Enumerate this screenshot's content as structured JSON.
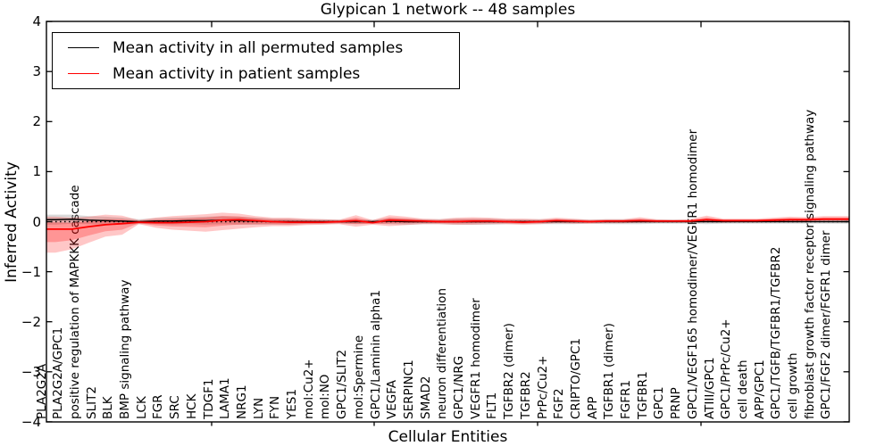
{
  "figure": {
    "title": "Glypican 1 network -- 48 samples",
    "xlabel": "Cellular Entities",
    "ylabel": "Inferred Activity"
  },
  "chart_data": {
    "type": "line",
    "title": "Glypican 1 network -- 48 samples",
    "xlabel": "Cellular Entities",
    "ylabel": "Inferred Activity",
    "ylim": [
      -4,
      4
    ],
    "yticks": [
      4,
      3,
      2,
      1,
      0,
      -1,
      -2,
      -3,
      -4
    ],
    "grid": false,
    "legend_position": "upper left",
    "zero_line": {
      "y": 0,
      "style": "dotted",
      "color": "#000000"
    },
    "categories": [
      "PLA2G2A",
      "PLA2G2A/GPC1",
      "positive regulation of MAPKKK cascade",
      "SLIT2",
      "BLK",
      "BMP signaling pathway",
      "LCK",
      "FGR",
      "SRC",
      "HCK",
      "TDGF1",
      "LAMA1",
      "NRG1",
      "LYN",
      "FYN",
      "YES1",
      "mol:Cu2+",
      "mol:NO",
      "GPC1/SLIT2",
      "mol:Spermine",
      "GPC1/Laminin alpha1",
      "VEGFA",
      "SERPINC1",
      "SMAD2",
      "neuron differentiation",
      "GPC1/NRG",
      "VEGFR1 homodimer",
      "FLT1",
      "TGFBR2 (dimer)",
      "TGFBR2",
      "PrPc/Cu2+",
      "FGF2",
      "CRIPTO/GPC1",
      "APP",
      "TGFBR1 (dimer)",
      "FGFR1",
      "TGFBR1",
      "GPC1",
      "PRNP",
      "GPC1/VEGF165 homodimer/VEGFR1 homodimer",
      "ATIII/GPC1",
      "GPC1/PrPc/Cu2+",
      "cell death",
      "APP/GPC1",
      "GPC1/TGFB/TGFBR1/TGFBR2",
      "cell growth",
      "fibroblast growth factor receptor signaling pathway",
      "GPC1/FGF2 dimer/FGFR1 dimer"
    ],
    "series": [
      {
        "name": "Mean activity in all permuted samples",
        "color": "#000000",
        "style": "solid",
        "values": [
          0.04,
          0.05,
          0.03,
          0.02,
          0.01,
          0.0,
          0.01,
          0.01,
          0.02,
          0.02,
          0.03,
          0.02,
          0.01,
          0.0,
          0.0,
          0.0,
          0.0,
          0.0,
          0.0,
          0.0,
          0.01,
          0.0,
          0.0,
          0.0,
          0.0,
          0.0,
          0.0,
          0.0,
          0.0,
          0.0,
          0.0,
          0.0,
          0.0,
          0.0,
          0.0,
          0.0,
          0.0,
          0.0,
          0.0,
          0.0,
          0.0,
          0.0,
          0.0,
          0.0,
          0.0,
          0.0,
          0.0,
          0.0
        ]
      },
      {
        "name": "Mean activity in patient samples",
        "color": "#ff0000",
        "style": "solid",
        "values": [
          -0.15,
          -0.15,
          -0.1,
          -0.06,
          -0.04,
          -0.01,
          -0.02,
          -0.02,
          -0.01,
          0.0,
          0.03,
          0.04,
          0.02,
          0.0,
          -0.01,
          -0.01,
          -0.01,
          0.0,
          0.02,
          -0.02,
          0.03,
          0.02,
          0.01,
          0.0,
          0.0,
          0.01,
          0.01,
          0.0,
          -0.01,
          0.0,
          0.02,
          0.01,
          0.0,
          0.01,
          0.01,
          0.02,
          0.01,
          0.01,
          0.01,
          0.04,
          0.02,
          0.02,
          0.02,
          0.03,
          0.04,
          0.04,
          0.05,
          0.05
        ]
      }
    ],
    "bands": [
      {
        "name": "permuted samples range",
        "color": "#969696",
        "opacity": 0.35,
        "center_series": 0,
        "half_width": [
          0.1,
          0.09,
          0.08,
          0.08,
          0.07,
          0.05,
          0.06,
          0.07,
          0.07,
          0.08,
          0.08,
          0.08,
          0.07,
          0.06,
          0.06,
          0.05,
          0.05,
          0.04,
          0.05,
          0.04,
          0.06,
          0.06,
          0.05,
          0.05,
          0.06,
          0.06,
          0.06,
          0.05,
          0.05,
          0.05,
          0.05,
          0.05,
          0.04,
          0.05,
          0.05,
          0.05,
          0.04,
          0.04,
          0.04,
          0.05,
          0.04,
          0.04,
          0.04,
          0.04,
          0.04,
          0.04,
          0.04,
          0.04
        ]
      },
      {
        "name": "patient samples range",
        "color": "#ff0000",
        "opacity": 0.22,
        "upper": [
          0.1,
          0.08,
          0.1,
          0.14,
          0.12,
          0.03,
          0.08,
          0.11,
          0.13,
          0.15,
          0.18,
          0.16,
          0.11,
          0.08,
          0.08,
          0.06,
          0.05,
          0.04,
          0.13,
          0.03,
          0.13,
          0.1,
          0.06,
          0.05,
          0.08,
          0.09,
          0.08,
          0.06,
          0.06,
          0.05,
          0.08,
          0.06,
          0.04,
          0.05,
          0.05,
          0.09,
          0.05,
          0.04,
          0.05,
          0.12,
          0.06,
          0.06,
          0.06,
          0.08,
          0.1,
          0.09,
          0.11,
          0.11
        ],
        "lower": [
          -0.62,
          -0.55,
          -0.42,
          -0.3,
          -0.26,
          -0.05,
          -0.12,
          -0.16,
          -0.18,
          -0.2,
          -0.17,
          -0.14,
          -0.11,
          -0.09,
          -0.09,
          -0.07,
          -0.06,
          -0.05,
          -0.1,
          -0.06,
          -0.09,
          -0.07,
          -0.05,
          -0.05,
          -0.06,
          -0.06,
          -0.05,
          -0.05,
          -0.06,
          -0.05,
          -0.03,
          -0.04,
          -0.04,
          -0.03,
          -0.03,
          -0.02,
          -0.02,
          -0.02,
          -0.02,
          -0.01,
          -0.02,
          -0.01,
          -0.01,
          0.0,
          0.0,
          0.0,
          0.01,
          0.01
        ]
      }
    ]
  }
}
